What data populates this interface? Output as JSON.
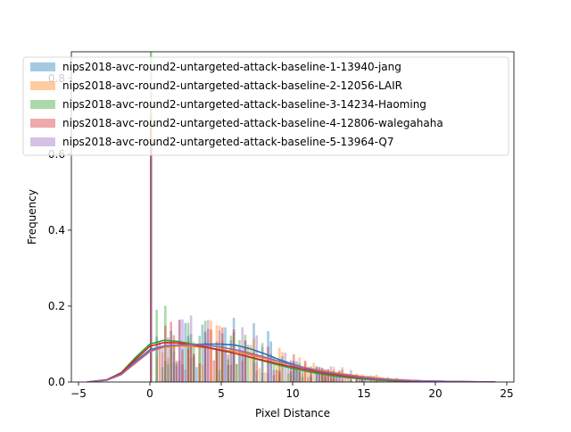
{
  "chart_data": {
    "type": "histogram",
    "xlabel": "Pixel Distance",
    "ylabel": "Frequency",
    "xlim": [
      -5.5,
      25.5
    ],
    "ylim": [
      0,
      0.87
    ],
    "x_ticks": [
      -5,
      0,
      5,
      10,
      15,
      20,
      25
    ],
    "y_ticks": [
      0.0,
      0.2,
      0.4,
      0.6,
      0.8
    ],
    "x_tick_labels": [
      "−5",
      "0",
      "5",
      "10",
      "15",
      "20",
      "25"
    ],
    "y_tick_labels": [
      "0.0",
      "0.2",
      "0.4",
      "0.6",
      "0.8"
    ],
    "grid": false,
    "legend_position": "upper",
    "bin_width": 0.2,
    "bar_alpha": 0.4,
    "series": [
      {
        "name": "nips2018-avc-round2-untargeted-attack-baseline-1-13940-jang",
        "color": "#1f77b4",
        "spike": {
          "x": 0.0,
          "value": 0.63
        },
        "kde": [
          [
            -4.4,
            0.0
          ],
          [
            -3.0,
            0.005
          ],
          [
            -2.0,
            0.02
          ],
          [
            -1.0,
            0.055
          ],
          [
            0.0,
            0.085
          ],
          [
            1.0,
            0.095
          ],
          [
            2.0,
            0.097
          ],
          [
            3.0,
            0.099
          ],
          [
            4.0,
            0.1
          ],
          [
            5.0,
            0.1
          ],
          [
            6.0,
            0.097
          ],
          [
            7.0,
            0.088
          ],
          [
            8.0,
            0.075
          ],
          [
            9.0,
            0.06
          ],
          [
            10.0,
            0.047
          ],
          [
            11.0,
            0.036
          ],
          [
            12.0,
            0.027
          ],
          [
            13.0,
            0.02
          ],
          [
            14.0,
            0.015
          ],
          [
            15.0,
            0.011
          ],
          [
            16.0,
            0.008
          ],
          [
            17.0,
            0.006
          ],
          [
            18.0,
            0.004
          ],
          [
            19.0,
            0.003
          ],
          [
            20.0,
            0.002
          ],
          [
            22.0,
            0.001
          ],
          [
            24.2,
            0.0
          ]
        ]
      },
      {
        "name": "nips2018-avc-round2-untargeted-attack-baseline-2-12056-LAIR",
        "color": "#ff7f0e",
        "spike": {
          "x": 0.0,
          "value": 0.74
        },
        "kde": [
          [
            -4.4,
            0.0
          ],
          [
            -3.0,
            0.005
          ],
          [
            -2.0,
            0.02
          ],
          [
            -1.0,
            0.05
          ],
          [
            0.0,
            0.08
          ],
          [
            1.0,
            0.092
          ],
          [
            2.0,
            0.095
          ],
          [
            3.0,
            0.094
          ],
          [
            4.0,
            0.09
          ],
          [
            5.0,
            0.085
          ],
          [
            6.0,
            0.08
          ],
          [
            7.0,
            0.072
          ],
          [
            8.0,
            0.063
          ],
          [
            9.0,
            0.054
          ],
          [
            10.0,
            0.045
          ],
          [
            11.0,
            0.037
          ],
          [
            12.0,
            0.03
          ],
          [
            13.0,
            0.024
          ],
          [
            14.0,
            0.019
          ],
          [
            15.0,
            0.014
          ],
          [
            16.0,
            0.01
          ],
          [
            17.0,
            0.007
          ],
          [
            18.0,
            0.005
          ],
          [
            19.0,
            0.003
          ],
          [
            20.0,
            0.002
          ],
          [
            22.0,
            0.001
          ],
          [
            24.2,
            0.0
          ]
        ]
      },
      {
        "name": "nips2018-avc-round2-untargeted-attack-baseline-3-14234-Haoming",
        "color": "#2ca02c",
        "spike": {
          "x": 0.0,
          "value": 0.87
        },
        "kde": [
          [
            -4.4,
            0.0
          ],
          [
            -3.0,
            0.006
          ],
          [
            -2.0,
            0.025
          ],
          [
            -1.0,
            0.065
          ],
          [
            0.0,
            0.1
          ],
          [
            1.0,
            0.11
          ],
          [
            2.0,
            0.107
          ],
          [
            3.0,
            0.1
          ],
          [
            4.0,
            0.092
          ],
          [
            5.0,
            0.084
          ],
          [
            6.0,
            0.075
          ],
          [
            7.0,
            0.065
          ],
          [
            8.0,
            0.055
          ],
          [
            9.0,
            0.045
          ],
          [
            10.0,
            0.036
          ],
          [
            11.0,
            0.028
          ],
          [
            12.0,
            0.021
          ],
          [
            13.0,
            0.015
          ],
          [
            14.0,
            0.011
          ],
          [
            15.0,
            0.008
          ],
          [
            16.0,
            0.005
          ],
          [
            17.0,
            0.003
          ],
          [
            18.0,
            0.002
          ],
          [
            20.0,
            0.001
          ],
          [
            24.2,
            0.0
          ]
        ]
      },
      {
        "name": "nips2018-avc-round2-untargeted-attack-baseline-4-12806-walegahaha",
        "color": "#d62728",
        "spike": {
          "x": 0.0,
          "value": 0.7
        },
        "kde": [
          [
            -4.4,
            0.0
          ],
          [
            -3.0,
            0.006
          ],
          [
            -2.0,
            0.024
          ],
          [
            -1.0,
            0.06
          ],
          [
            0.0,
            0.094
          ],
          [
            1.0,
            0.104
          ],
          [
            2.0,
            0.103
          ],
          [
            3.0,
            0.098
          ],
          [
            4.0,
            0.091
          ],
          [
            5.0,
            0.083
          ],
          [
            6.0,
            0.075
          ],
          [
            7.0,
            0.066
          ],
          [
            8.0,
            0.057
          ],
          [
            9.0,
            0.048
          ],
          [
            10.0,
            0.04
          ],
          [
            11.0,
            0.032
          ],
          [
            12.0,
            0.025
          ],
          [
            13.0,
            0.019
          ],
          [
            14.0,
            0.014
          ],
          [
            15.0,
            0.01
          ],
          [
            16.0,
            0.007
          ],
          [
            17.0,
            0.005
          ],
          [
            18.0,
            0.003
          ],
          [
            20.0,
            0.001
          ],
          [
            24.2,
            0.0
          ]
        ]
      },
      {
        "name": "nips2018-avc-round2-untargeted-attack-baseline-5-13964-Q7",
        "color": "#9467bd",
        "spike": {
          "x": 0.0,
          "value": 0.6
        },
        "kde": [
          [
            -4.4,
            0.0
          ],
          [
            -3.0,
            0.005
          ],
          [
            -2.0,
            0.02
          ],
          [
            -1.0,
            0.052
          ],
          [
            0.0,
            0.082
          ],
          [
            1.0,
            0.094
          ],
          [
            2.0,
            0.098
          ],
          [
            3.0,
            0.099
          ],
          [
            4.0,
            0.097
          ],
          [
            5.0,
            0.092
          ],
          [
            6.0,
            0.085
          ],
          [
            7.0,
            0.076
          ],
          [
            8.0,
            0.066
          ],
          [
            9.0,
            0.055
          ],
          [
            10.0,
            0.045
          ],
          [
            11.0,
            0.036
          ],
          [
            12.0,
            0.028
          ],
          [
            13.0,
            0.022
          ],
          [
            14.0,
            0.017
          ],
          [
            15.0,
            0.012
          ],
          [
            16.0,
            0.008
          ],
          [
            17.0,
            0.006
          ],
          [
            18.0,
            0.004
          ],
          [
            20.0,
            0.002
          ],
          [
            24.2,
            0.0
          ]
        ]
      }
    ]
  }
}
